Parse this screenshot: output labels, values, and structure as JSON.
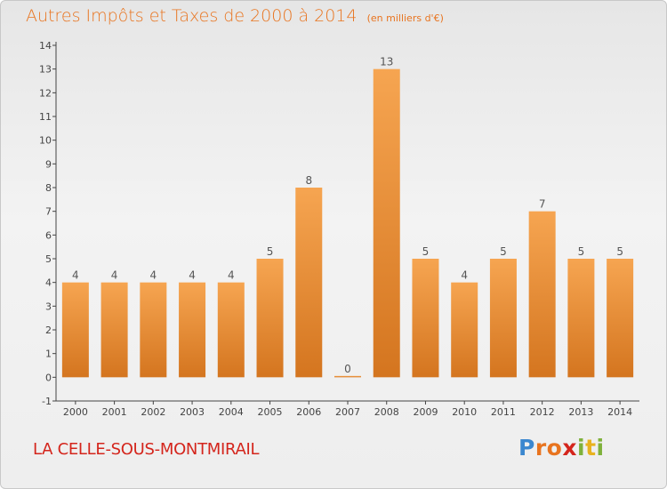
{
  "chart_data": {
    "type": "bar",
    "title": "Autres Impôts et Taxes de 2000 à 2014",
    "subtitle": "(en milliers d'€)",
    "categories": [
      "2000",
      "2001",
      "2002",
      "2003",
      "2004",
      "2005",
      "2006",
      "2007",
      "2008",
      "2009",
      "2010",
      "2011",
      "2012",
      "2013",
      "2014"
    ],
    "values": [
      4,
      4,
      4,
      4,
      4,
      5,
      8,
      0,
      13,
      5,
      4,
      5,
      7,
      5,
      5
    ],
    "data_labels": [
      "4",
      "4",
      "4",
      "4",
      "4",
      "5",
      "8",
      "0",
      "13",
      "5",
      "4",
      "5",
      "7",
      "5",
      "5"
    ],
    "ylim": [
      -1,
      14
    ],
    "y_ticks": [
      "-1",
      "0",
      "1",
      "2",
      "3",
      "4",
      "5",
      "6",
      "7",
      "8",
      "9",
      "10",
      "11",
      "12",
      "13",
      "14"
    ],
    "xlabel": "",
    "ylabel": "",
    "grid": false,
    "colors": {
      "bar_top": "#f6a551",
      "bar_bottom": "#d4751f",
      "label": "#555555",
      "axis": "#444444"
    }
  },
  "footer": {
    "commune": "LA CELLE-SOUS-MONTMIRAIL",
    "logo_letters": [
      {
        "ch": "P",
        "color": "#3b87cf"
      },
      {
        "ch": "r",
        "color": "#e8741f"
      },
      {
        "ch": "o",
        "color": "#e8741f"
      },
      {
        "ch": "x",
        "color": "#d4251c"
      },
      {
        "ch": "i",
        "color": "#7fb13b"
      },
      {
        "ch": "t",
        "color": "#e8b21f"
      },
      {
        "ch": "i",
        "color": "#7fb13b"
      }
    ]
  }
}
